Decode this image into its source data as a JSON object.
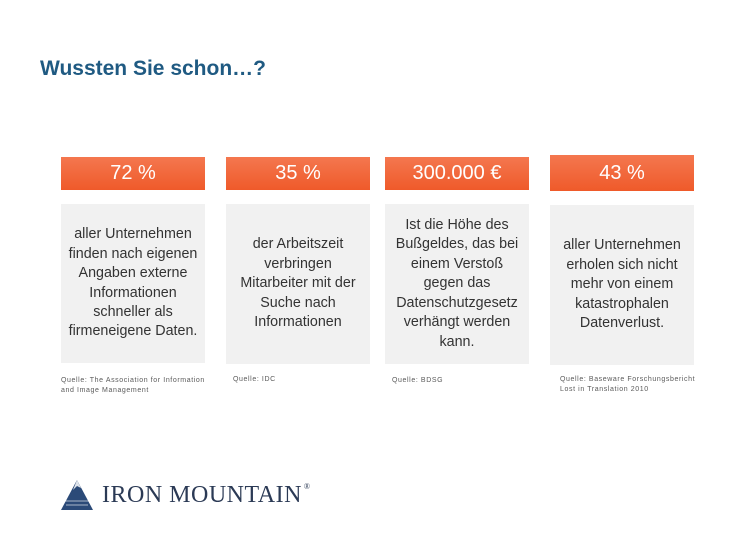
{
  "slide": {
    "title": "Wussten Sie schon…?"
  },
  "cards": [
    {
      "value": "72 %",
      "text": "aller Unternehmen finden nach eigenen Angaben externe Informationen schneller als firmeneigene Daten.",
      "source": "Quelle: The Association for Information and Image Management"
    },
    {
      "value": "35 %",
      "text": "der Arbeitszeit verbringen Mitarbeiter mit der Suche nach Informationen",
      "source": "Quelle: IDC"
    },
    {
      "value": "300.000 €",
      "text": "Ist die Höhe des Bußgeldes, das bei einem Verstoß gegen das Datenschutzgesetz verhängt werden kann.",
      "source": "Quelle: BDSG"
    },
    {
      "value": "43 %",
      "text": "aller Unternehmen erholen sich nicht mehr von einem katastrophalen Datenverlust.",
      "source": "Quelle: Baseware Forschungsbericht Lost in Translation 2010"
    }
  ],
  "logo": {
    "brand_first": "IRON",
    "brand_second": "MOUNTAIN",
    "registered": "®",
    "icon": "mountain-icon"
  },
  "colors": {
    "title": "#1f5a82",
    "accent": "#ef5a2a",
    "card_bg": "#f1f1f1",
    "logo": "#2b3a55"
  }
}
